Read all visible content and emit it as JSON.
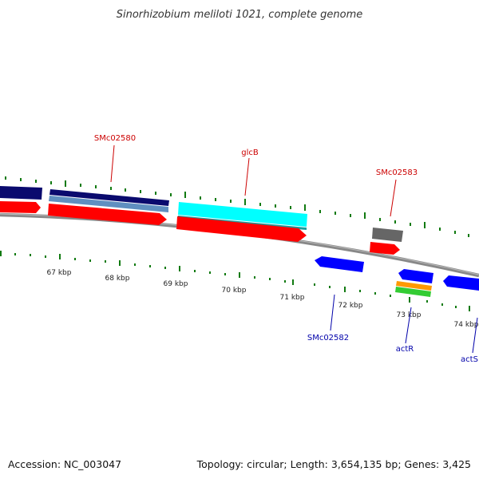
{
  "title": "Sinorhizobium meliloti 1021, complete genome",
  "footer": {
    "accession": "Accession: NC_003047",
    "stats": "Topology: circular; Length: 3,654,135 bp; Genes: 3,425"
  },
  "axis": {
    "ticks": [
      "67 kbp",
      "68 kbp",
      "69 kbp",
      "70 kbp",
      "71 kbp",
      "72 kbp",
      "73 kbp",
      "74 kbp"
    ]
  },
  "labels": {
    "SMc02580": "SMc02580",
    "glcB": "glcB",
    "SMc02583": "SMc02583",
    "SMc02582": "SMc02582",
    "actR": "actR",
    "actS": "actS"
  },
  "colors": {
    "forward_label": "#cc0000",
    "reverse_label": "#0000aa",
    "cds": "#ff0000",
    "gene_reverse": "#0000ff",
    "dark_navy": "#0a0a6e",
    "steel_blue": "#5f8fc0",
    "cyan": "#00ffff",
    "gray": "#666666",
    "orange": "#ff9900",
    "green": "#33cc33",
    "backbone": "#888888",
    "tick_green": "#117a11"
  }
}
